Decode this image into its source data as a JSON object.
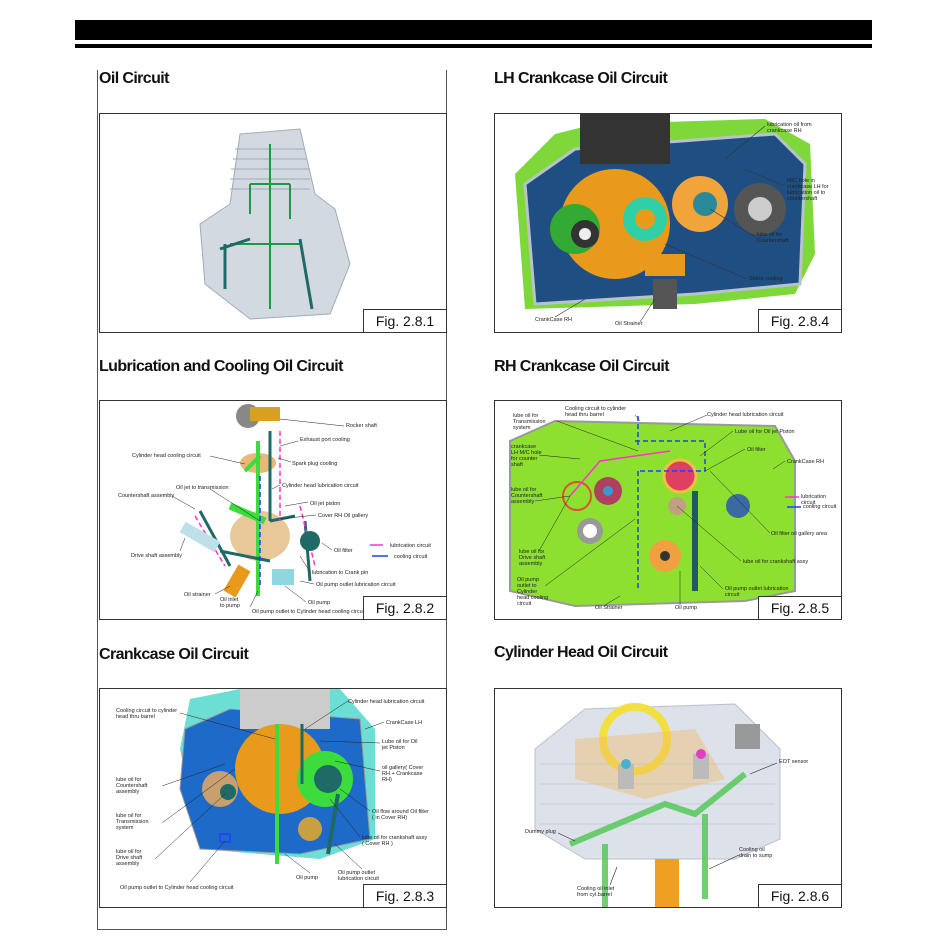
{
  "sections": [
    {
      "title": "Oil Circuit",
      "fig": "Fig. 2.8.1",
      "labels": []
    },
    {
      "title": "LH Crankcase Oil Circuit",
      "fig": "Fig. 2.8.4",
      "labels": [
        "lubrication oil from\ncrankcase RH",
        "M/C hole in\ncrankcase LH for\nlubrication oil to\ncountershaft",
        "lube oil for\nCountershaft",
        "Stator cooling",
        "CrankCase RH",
        "Oil Strainer"
      ]
    },
    {
      "title": "Lubrication and Cooling Oil Circuit",
      "fig": "Fig. 2.8.2",
      "labels": [
        "Rocker shaft",
        "Exhaust port cooling",
        "Cylinder head cooling circuit",
        "Spark plug cooling",
        "Oil jet to transmission",
        "Cylinder head lubrication circuit",
        "Countershaft assembly",
        "Oil jet piston",
        "Cover RH Oil gallery",
        "lubrication circuit",
        "Oil filter",
        "cooling circuit",
        "Drive shaft assembly",
        "lubrication to Crank pin",
        "Oil pump outlet lubrication circuit",
        "Oil strainer",
        "Oil inlet\nto pump",
        "Oil pump",
        "Oil pump outlet to Cylinder head cooling circuit"
      ]
    },
    {
      "title": "RH Crankcase Oil Circuit",
      "fig": "Fig. 2.8.5",
      "labels": [
        "lube oil for\nTransmission\nsystem",
        "Cooling circuit to cylinder\nhead thru barrel",
        "Cylinder head lubrication circuit",
        "Lube oil for Oil jet Piston",
        "crankcase\nLH M/C hole\nfor counter\nshaft",
        "Oil filter",
        "CrankCase RH",
        "lube oil for\nCountershaft\nassembly",
        "lubrication circuit",
        "cooling circuit",
        "Oil filter oil gallery area",
        "lube oil for\nDrive shaft\nassembly",
        "lube oil for crankshaft assy",
        "Oil pump\noutlet to\nCylinder\nhead cooling\ncircuit",
        "Oil pump outlet lubrication\ncircuit",
        "Oil Strainer",
        "Oil pump"
      ]
    },
    {
      "title": "Crankcase Oil Circuit",
      "fig": "Fig. 2.8.3",
      "labels": [
        "Cooling circuit to cylinder\nhead thru barrel",
        "Cylinder head lubrication circuit",
        "CrankCase LH",
        "Lube oil for Oil\njet Piston",
        "oil gallery( Cover\nRH + Crankcase\nRH)",
        "lube oil for\nCountershaft\nassembly",
        "lube oil for\nTransmission\nsystem",
        "Oil flow around Oil filter\n( in Cover RH)",
        "lube oil for crankshaft assy\n( Cover RH )",
        "lube oil for\nDrive shaft\nassembly",
        "Oil pump",
        "Oil pump outlet\nlubrication circuit",
        "Oil pump outlet to Cylinder head cooling circuit"
      ]
    },
    {
      "title": "Cylinder Head Oil Circuit",
      "fig": "Fig. 2.8.6",
      "labels": [
        "EOT sensor",
        "Dummy plug",
        "Cooling oil\ndrain to sump",
        "Cooling oil inlet\nfrom cyl.barrel"
      ]
    }
  ],
  "colors": {
    "lubrication": "#ff33cc",
    "cooling": "#1f3fff",
    "crankcase_green": "#8ee030",
    "crankcase_blue": "#1e5aa8",
    "crank_orange": "#e89a1a"
  }
}
